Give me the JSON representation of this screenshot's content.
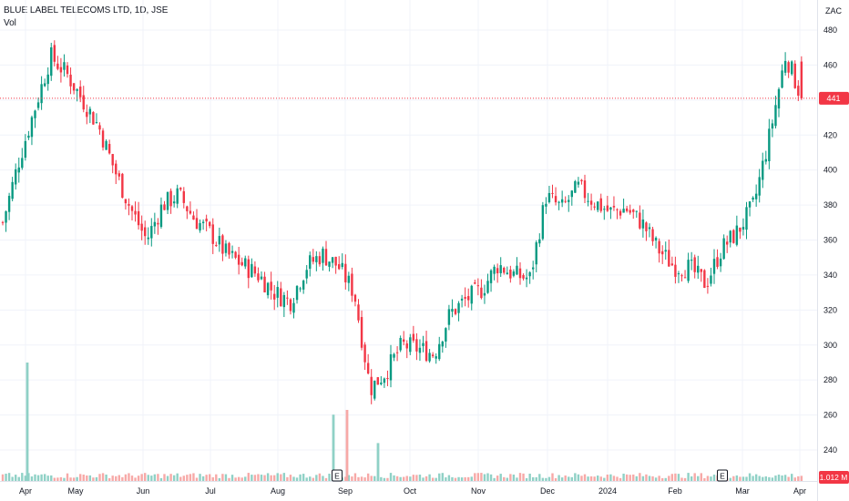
{
  "header": {
    "title": "BLUE LABEL TELECOMS LTD, 1D, JSE",
    "volume_label": "Vol",
    "currency": "ZAC"
  },
  "price_badge": {
    "value": "441",
    "color": "#f23645"
  },
  "volume_badge": {
    "value": "1.012 M",
    "color": "#f23645"
  },
  "earnings_marker_label": "E",
  "colors": {
    "up": "#089981",
    "down": "#f23645",
    "up_vol": "#8fd1c6",
    "down_vol": "#f7a9a7",
    "grid": "#f0f3fa"
  },
  "chart_data": {
    "type": "candlestick",
    "title": "BLUE LABEL TELECOMS LTD, 1D, JSE",
    "y_axis": {
      "ticks": [
        240,
        260,
        280,
        300,
        320,
        340,
        360,
        380,
        400,
        420,
        440,
        460,
        480
      ],
      "range": [
        224,
        485
      ],
      "unit": "ZAC"
    },
    "x_axis": {
      "labels": [
        "Apr",
        "May",
        "Jun",
        "Jul",
        "Aug",
        "Sep",
        "Oct",
        "Nov",
        "Dec",
        "2024",
        "Feb",
        "Mar",
        "Apr"
      ]
    },
    "last_price": 441,
    "last_volume": "1.012 M",
    "earnings_markers": [
      "Sep",
      "Feb"
    ],
    "anchors": [
      [
        "Apr",
        370
      ],
      [
        "Apr",
        405
      ],
      [
        "Apr",
        435
      ],
      [
        "Apr",
        465
      ],
      [
        "May",
        455
      ],
      [
        "May",
        440
      ],
      [
        "May",
        425
      ],
      [
        "May",
        400
      ],
      [
        "Jun",
        378
      ],
      [
        "Jun",
        360
      ],
      [
        "Jun",
        380
      ],
      [
        "Jun",
        386
      ],
      [
        "Jun",
        372
      ],
      [
        "Jul",
        364
      ],
      [
        "Jul",
        352
      ],
      [
        "Jul",
        346
      ],
      [
        "Jul",
        340
      ],
      [
        "Aug",
        330
      ],
      [
        "Aug",
        325
      ],
      [
        "Aug",
        345
      ],
      [
        "Aug",
        352
      ],
      [
        "Sep",
        345
      ],
      [
        "Sep",
        330
      ],
      [
        "Sep",
        275
      ],
      [
        "Sep",
        285
      ],
      [
        "Sep",
        300
      ],
      [
        "Oct",
        298
      ],
      [
        "Oct",
        295
      ],
      [
        "Oct",
        318
      ],
      [
        "Oct",
        326
      ],
      [
        "Nov",
        332
      ],
      [
        "Nov",
        346
      ],
      [
        "Nov",
        340
      ],
      [
        "Nov",
        338
      ],
      [
        "Dec",
        385
      ],
      [
        "Dec",
        378
      ],
      [
        "Dec",
        390
      ],
      [
        "Dec",
        382
      ],
      [
        "2024",
        376
      ],
      [
        "2024",
        378
      ],
      [
        "2024",
        370
      ],
      [
        "2024",
        355
      ],
      [
        "Feb",
        345
      ],
      [
        "Feb",
        344
      ],
      [
        "Feb",
        335
      ],
      [
        "Feb",
        355
      ],
      [
        "Mar",
        365
      ],
      [
        "Mar",
        380
      ],
      [
        "Mar",
        420
      ],
      [
        "Apr",
        466
      ],
      [
        "Apr",
        441
      ]
    ],
    "volume_spikes": [
      {
        "month": "Apr",
        "relative": 1.0
      },
      {
        "month": "Sep",
        "relative": 0.56
      },
      {
        "month": "Sep",
        "relative": 0.6
      },
      {
        "month": "Oct",
        "relative": 0.32
      }
    ]
  }
}
